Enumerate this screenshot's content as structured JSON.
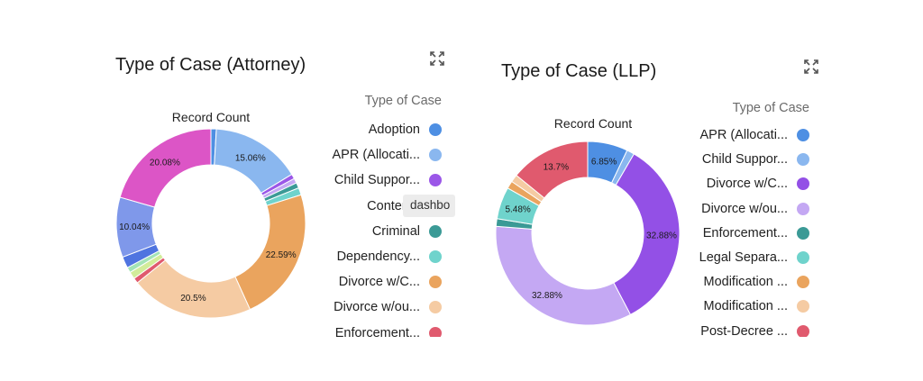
{
  "tooltip": {
    "text": "dashbo"
  },
  "charts": [
    {
      "title": "Type of Case (Attorney)",
      "expand_icon": "expand-icon",
      "legend_title": "Type of Case",
      "legend": [
        {
          "label": "Adoption",
          "color": "#4e8fe3"
        },
        {
          "label": "APR (Allocati...",
          "color": "#8ab7ef"
        },
        {
          "label": "Child Suppor...",
          "color": "#9b57e8"
        },
        {
          "label": "Contemp",
          "color": "#c4a8f3"
        },
        {
          "label": "Criminal",
          "color": "#3b9a96"
        },
        {
          "label": "Dependency...",
          "color": "#6fd3cc"
        },
        {
          "label": "Divorce w/C...",
          "color": "#eaa45e"
        },
        {
          "label": "Divorce w/ou...",
          "color": "#f5cba3"
        },
        {
          "label": "Enforcement...",
          "color": "#e05a6e"
        }
      ]
    },
    {
      "title": "Type of Case (LLP)",
      "expand_icon": "expand-icon",
      "legend_title": "Type of Case",
      "legend": [
        {
          "label": "APR (Allocati...",
          "color": "#4e8fe3"
        },
        {
          "label": "Child Suppor...",
          "color": "#8ab7ef"
        },
        {
          "label": "Divorce w/C...",
          "color": "#9350e6"
        },
        {
          "label": "Divorce w/ou...",
          "color": "#c4a8f3"
        },
        {
          "label": "Enforcement...",
          "color": "#3b9a96"
        },
        {
          "label": "Legal Separa...",
          "color": "#6fd3cc"
        },
        {
          "label": "Modification ...",
          "color": "#eaa45e"
        },
        {
          "label": "Modification ...",
          "color": "#f5cba3"
        },
        {
          "label": "Post-Decree ...",
          "color": "#e05a6e"
        }
      ]
    }
  ],
  "chart_data": [
    {
      "type": "pie",
      "title": "Type of Case (Attorney)",
      "subtitle": "Record Count",
      "legend_title": "Type of Case",
      "donut": true,
      "slices": [
        {
          "value": 0.9,
          "label": "",
          "color": "#4e8fe3"
        },
        {
          "value": 15.06,
          "label": "15.06%",
          "color": "#8ab7ef"
        },
        {
          "value": 0.8,
          "label": "",
          "color": "#9b57e8"
        },
        {
          "value": 0.8,
          "label": "",
          "color": "#c4a8f3"
        },
        {
          "value": 0.9,
          "label": "",
          "color": "#3b9a96"
        },
        {
          "value": 1.2,
          "label": "",
          "color": "#6fd3cc"
        },
        {
          "value": 22.59,
          "label": "22.59%",
          "color": "#eaa45e"
        },
        {
          "value": 20.5,
          "label": "20.5%",
          "color": "#f5cba3"
        },
        {
          "value": 0.9,
          "label": "",
          "color": "#e05a6e"
        },
        {
          "value": 1.2,
          "label": "",
          "color": "#d2ec9a"
        },
        {
          "value": 0.9,
          "label": "",
          "color": "#a3e3b6"
        },
        {
          "value": 1.9,
          "label": "",
          "color": "#4f74e0"
        },
        {
          "value": 10.04,
          "label": "10.04%",
          "color": "#7f98ea"
        },
        {
          "value": 20.08,
          "label": "20.08%",
          "color": "#dc55c6"
        }
      ]
    },
    {
      "type": "pie",
      "title": "Type of Case (LLP)",
      "subtitle": "Record Count",
      "legend_title": "Type of Case",
      "donut": true,
      "slices": [
        {
          "value": 6.85,
          "label": "6.85%",
          "color": "#4e8fe3"
        },
        {
          "value": 1.3,
          "label": "",
          "color": "#8ab7ef"
        },
        {
          "value": 32.88,
          "label": "32.88%",
          "color": "#9350e6"
        },
        {
          "value": 32.88,
          "label": "32.88%",
          "color": "#c4a8f3"
        },
        {
          "value": 1.3,
          "label": "",
          "color": "#3b9a96"
        },
        {
          "value": 5.48,
          "label": "5.48%",
          "color": "#6fd3cc"
        },
        {
          "value": 1.3,
          "label": "",
          "color": "#eaa45e"
        },
        {
          "value": 1.3,
          "label": "",
          "color": "#f5cba3"
        },
        {
          "value": 13.7,
          "label": "13.7%",
          "color": "#e05a6e"
        }
      ]
    }
  ]
}
